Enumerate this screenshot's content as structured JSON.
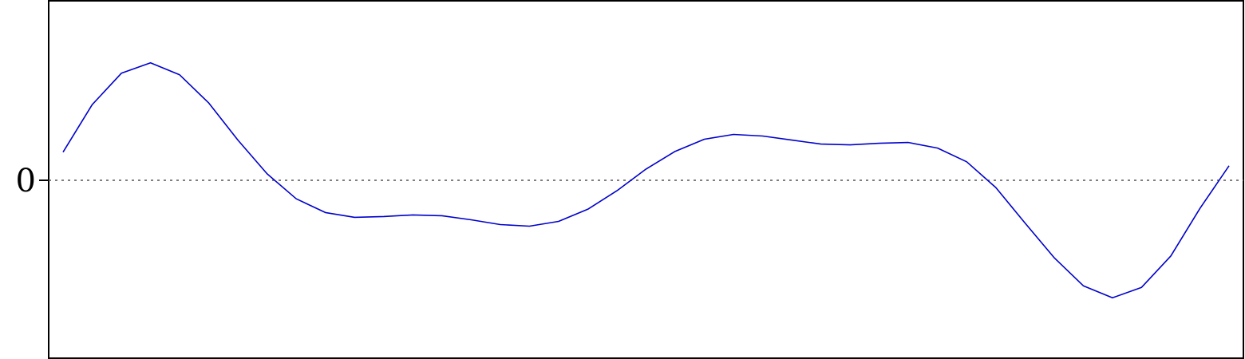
{
  "chart_data": {
    "type": "line",
    "title": "",
    "xlabel": "",
    "ylabel": "",
    "x": [
      0,
      1,
      2,
      3,
      4,
      5,
      6,
      7,
      8,
      9,
      10,
      11,
      12,
      13,
      14,
      15,
      16,
      17,
      18,
      19,
      20,
      21,
      22,
      23,
      24,
      25,
      26,
      27,
      28,
      29,
      30,
      31,
      32,
      33,
      34,
      35,
      36,
      37,
      38,
      39,
      40
    ],
    "series": [
      {
        "color": "#0000cc",
        "values": [
          0.35,
          0.94,
          1.33,
          1.46,
          1.31,
          0.96,
          0.5,
          0.08,
          -0.23,
          -0.4,
          -0.46,
          -0.45,
          -0.43,
          -0.44,
          -0.49,
          -0.55,
          -0.57,
          -0.51,
          -0.36,
          -0.13,
          0.14,
          0.36,
          0.51,
          0.57,
          0.55,
          0.5,
          0.45,
          0.44,
          0.46,
          0.47,
          0.4,
          0.23,
          -0.09,
          -0.53,
          -0.96,
          -1.31,
          -1.46,
          -1.33,
          -0.94,
          -0.35,
          0.18
        ]
      }
    ],
    "ylim": [
      -2.21,
      2.23
    ],
    "yticks": [
      {
        "value": 0,
        "label": "0"
      }
    ],
    "zero_line": {
      "value": 0,
      "style": "dotted",
      "color": "#555555"
    },
    "grid": false,
    "legend": "none"
  }
}
